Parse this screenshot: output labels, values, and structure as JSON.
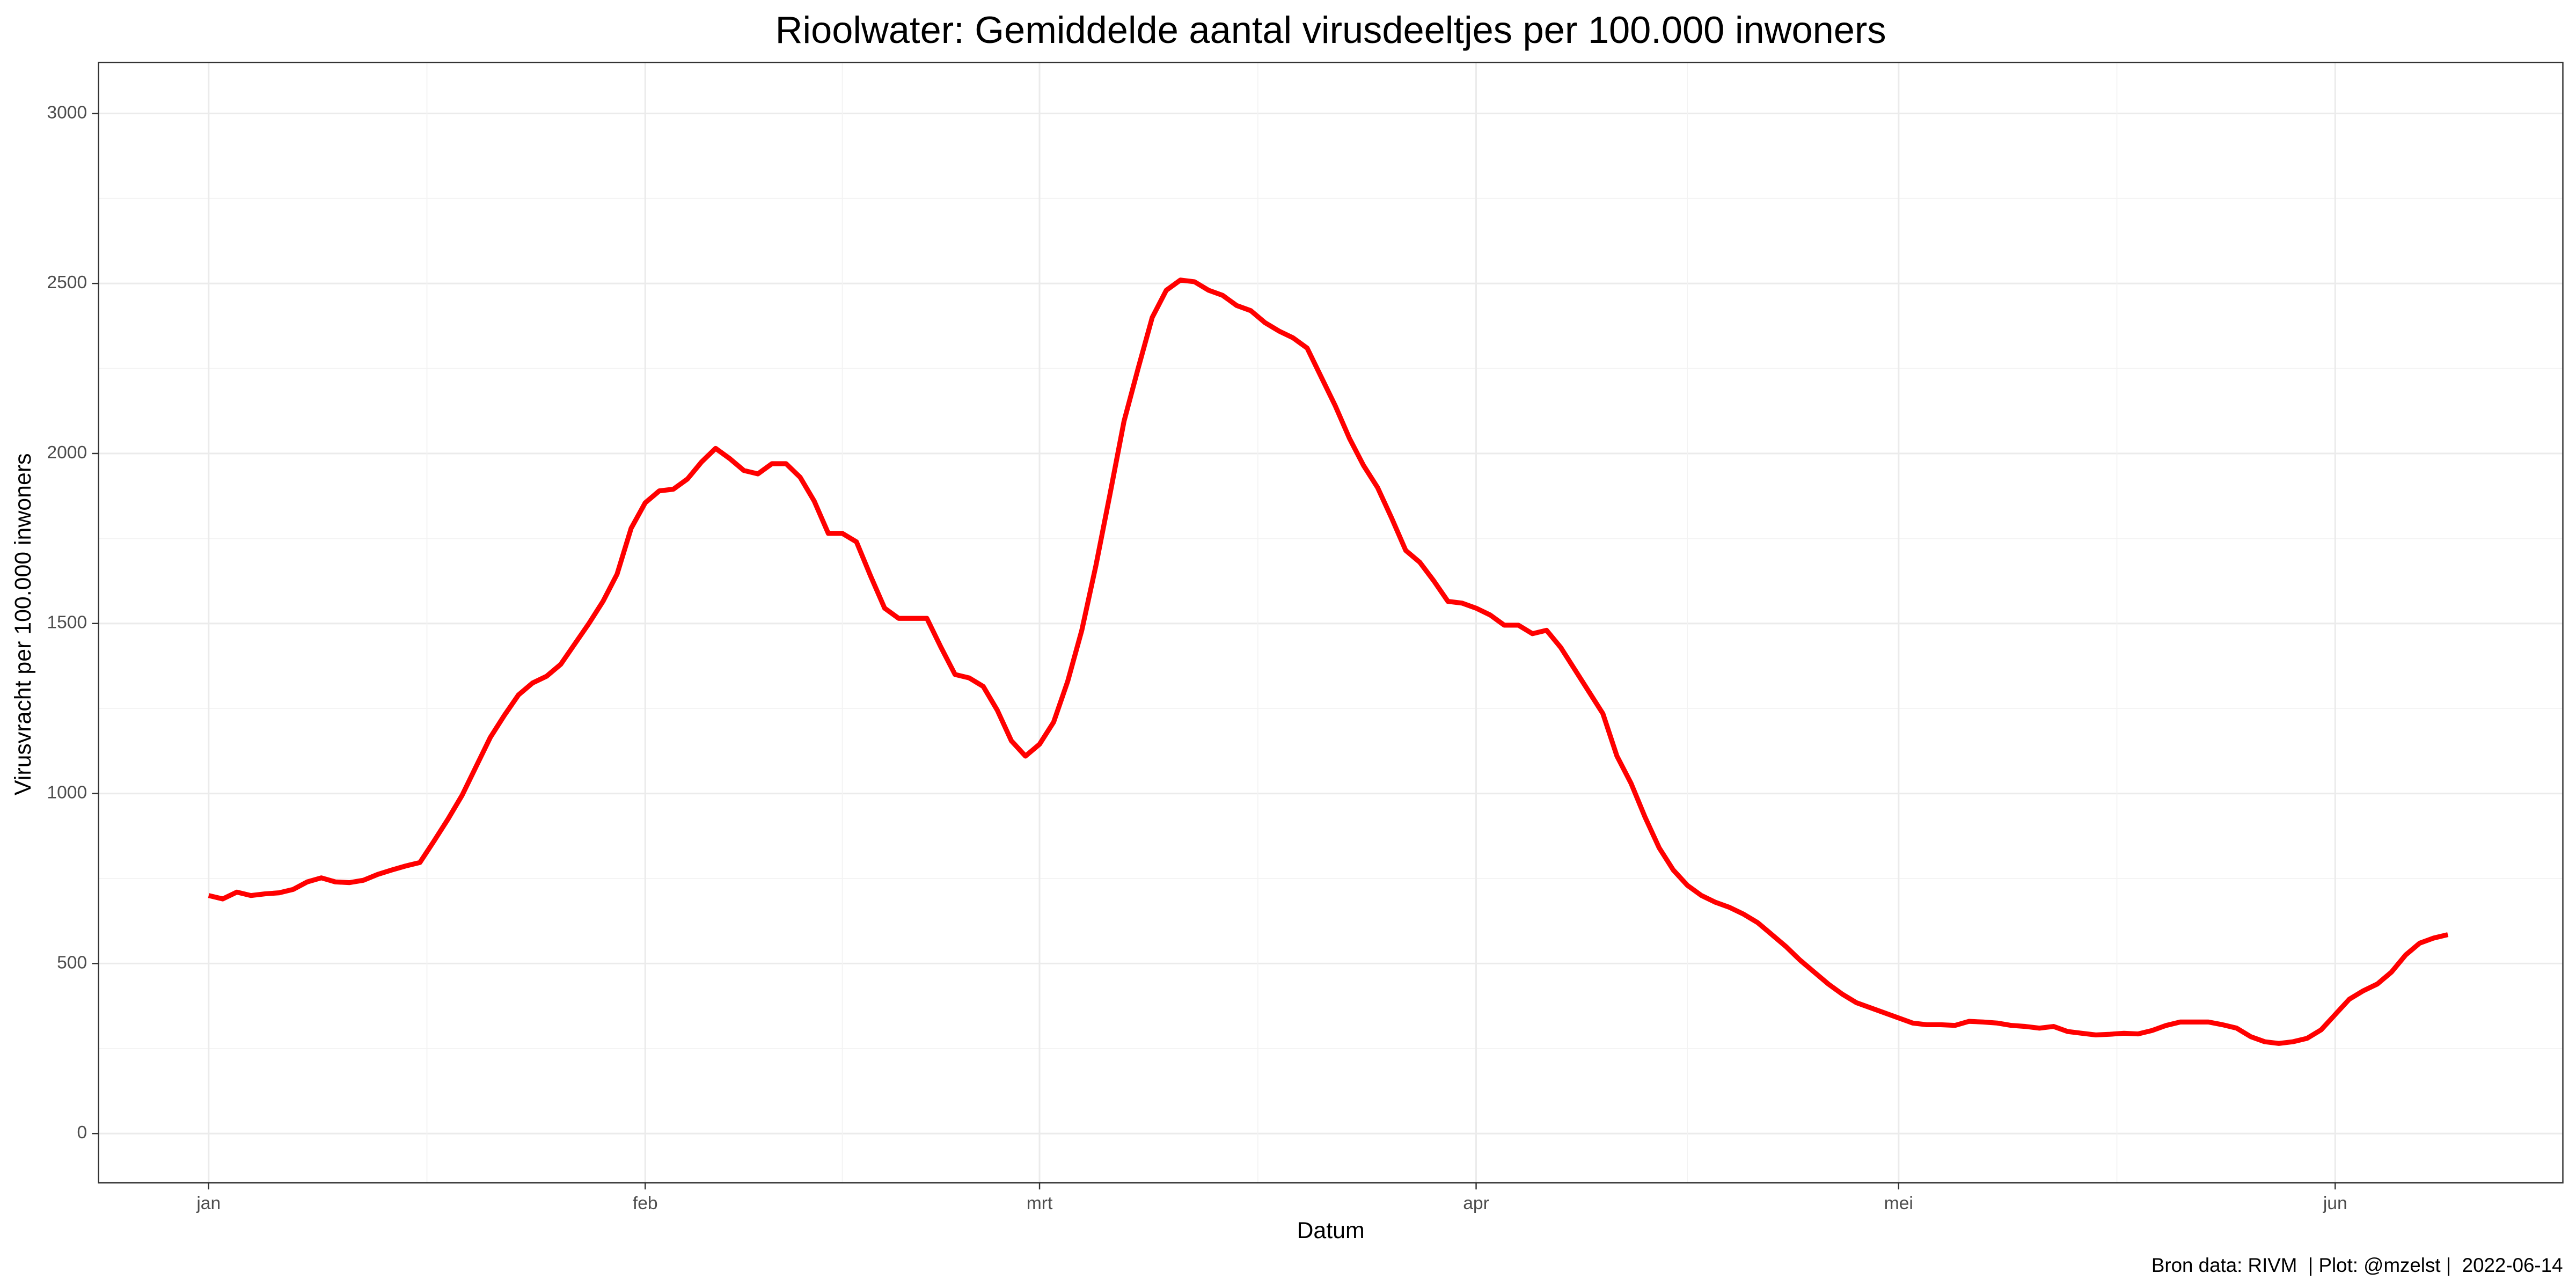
{
  "chart_data": {
    "type": "line",
    "title": "Rioolwater: Gemiddelde aantal virusdeeltjes per 100.000 inwoners",
    "x_label": "Datum",
    "y_label": "Virusvracht per 100.000 inwoners",
    "caption": "Bron data: RIVM  | Plot: @mzelst |  2022-06-14",
    "color": "#ff0000",
    "grid": true,
    "categories": [
      "jan",
      null,
      null,
      null,
      null,
      null,
      null,
      null,
      null,
      null,
      null,
      null,
      null,
      null,
      null,
      null,
      null,
      null,
      null,
      null,
      null,
      null,
      null,
      null,
      null,
      null,
      null,
      null,
      null,
      null,
      null,
      "feb",
      null,
      null,
      null,
      null,
      null,
      null,
      null,
      null,
      null,
      null,
      null,
      null,
      null,
      null,
      null,
      null,
      null,
      null,
      null,
      null,
      null,
      null,
      null,
      null,
      null,
      null,
      null,
      "mrt",
      null,
      null,
      null,
      null,
      null,
      null,
      null,
      null,
      null,
      null,
      null,
      null,
      null,
      null,
      null,
      null,
      null,
      null,
      null,
      null,
      null,
      null,
      null,
      null,
      null,
      null,
      null,
      null,
      null,
      null,
      "apr",
      null,
      null,
      null,
      null,
      null,
      null,
      null,
      null,
      null,
      null,
      null,
      null,
      null,
      null,
      null,
      null,
      null,
      null,
      null,
      null,
      null,
      null,
      null,
      null,
      null,
      null,
      null,
      null,
      null,
      "mei",
      null,
      null,
      null,
      null,
      null,
      null,
      null,
      null,
      null,
      null,
      null,
      null,
      null,
      null,
      null,
      null,
      null,
      null,
      null,
      null,
      null,
      null,
      null,
      null,
      null,
      null,
      null,
      null,
      null,
      null,
      "jun",
      null,
      null,
      null,
      null,
      null,
      null,
      null,
      null
    ],
    "values": [
      700,
      690,
      710,
      700,
      705,
      708,
      718,
      740,
      752,
      740,
      738,
      745,
      762,
      775,
      787,
      797,
      860,
      925,
      995,
      1080,
      1165,
      1230,
      1290,
      1325,
      1345,
      1380,
      1440,
      1500,
      1565,
      1645,
      1780,
      1855,
      1890,
      1895,
      1925,
      1975,
      2015,
      1985,
      1950,
      1940,
      1970,
      1970,
      1930,
      1860,
      1765,
      1765,
      1740,
      1640,
      1545,
      1515,
      1515,
      1515,
      1430,
      1350,
      1340,
      1315,
      1245,
      1155,
      1110,
      1145,
      1210,
      1330,
      1480,
      1670,
      1880,
      2095,
      2250,
      2400,
      2480,
      2510,
      2505,
      2480,
      2465,
      2435,
      2420,
      2385,
      2360,
      2340,
      2310,
      2225,
      2140,
      2045,
      1965,
      1900,
      1810,
      1715,
      1680,
      1625,
      1565,
      1560,
      1545,
      1525,
      1495,
      1495,
      1470,
      1480,
      1430,
      1365,
      1300,
      1235,
      1110,
      1030,
      930,
      840,
      775,
      730,
      700,
      680,
      665,
      645,
      620,
      585,
      550,
      510,
      475,
      440,
      410,
      385,
      370,
      355,
      340,
      325,
      320,
      320,
      318,
      330,
      328,
      325,
      318,
      315,
      310,
      315,
      300,
      295,
      290,
      292,
      295,
      293,
      303,
      318,
      328,
      328,
      328,
      320,
      310,
      285,
      270,
      265,
      270,
      280,
      305,
      350,
      395,
      420,
      440,
      475,
      525,
      560,
      575,
      585
    ],
    "ylim": [
      -145,
      3150
    ],
    "yticks": [
      0,
      500,
      1000,
      1500,
      2000,
      2500,
      3000
    ]
  }
}
